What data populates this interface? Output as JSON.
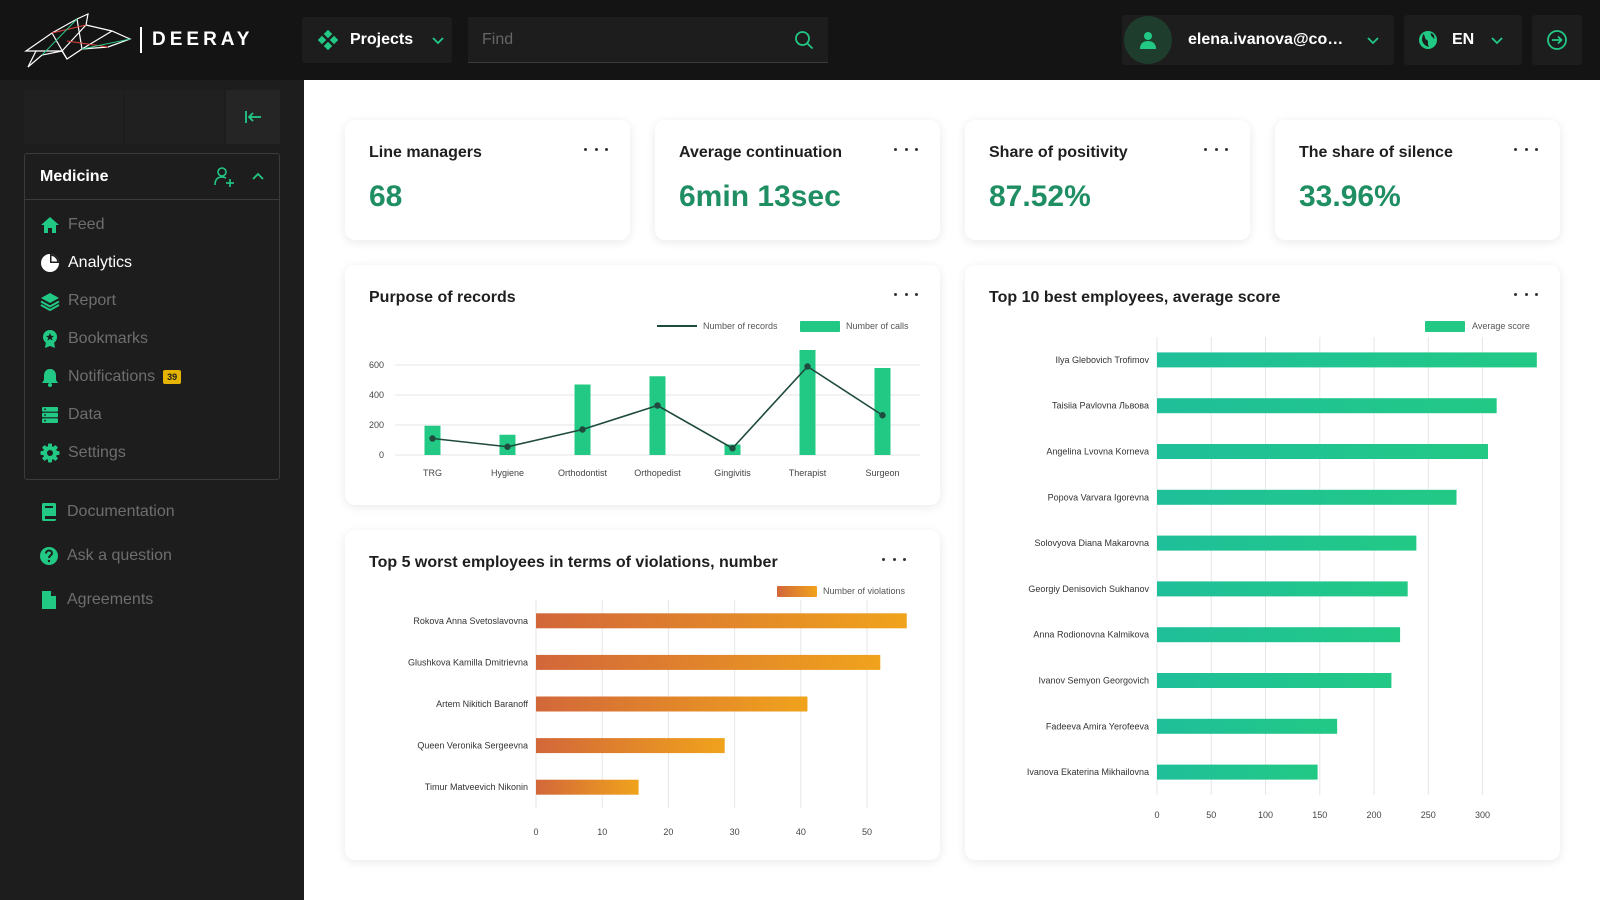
{
  "brand": {
    "name": "DEERAY"
  },
  "header": {
    "projects_label": "Projects",
    "search_placeholder": "Find",
    "user_email": "elena.ivanova@com...",
    "language": "EN"
  },
  "sidebar": {
    "group_title": "Medicine",
    "items": [
      {
        "label": "Feed",
        "icon": "home-icon",
        "active": false
      },
      {
        "label": "Analytics",
        "icon": "pie-chart-icon",
        "active": true
      },
      {
        "label": "Report",
        "icon": "layers-icon",
        "active": false
      },
      {
        "label": "Bookmarks",
        "icon": "badge-icon",
        "active": false
      },
      {
        "label": "Notifications",
        "icon": "bell-icon",
        "active": false,
        "badge": "39"
      },
      {
        "label": "Data",
        "icon": "database-icon",
        "active": false
      },
      {
        "label": "Settings",
        "icon": "gear-icon",
        "active": false
      }
    ],
    "secondary_items": [
      {
        "label": "Documentation",
        "icon": "book-icon"
      },
      {
        "label": "Ask a question",
        "icon": "question-icon"
      },
      {
        "label": "Agreements",
        "icon": "document-icon"
      }
    ]
  },
  "stats": [
    {
      "title": "Line managers",
      "value": "68"
    },
    {
      "title": "Average continuation",
      "value": "6min 13sec"
    },
    {
      "title": "Share of positivity",
      "value": "87.52%"
    },
    {
      "title": "The share of silence",
      "value": "33.96%"
    }
  ],
  "colors": {
    "accent": "#1f8e63",
    "bar_green": "#22c985",
    "line_dark": "#1f4a3e",
    "orange_start": "#d2673a",
    "orange_end": "#f0a31c",
    "sidebar_bg": "#1d1d1d",
    "topbar_bg": "#141414",
    "badge": "#e6b400"
  },
  "chart_data": [
    {
      "id": "purpose",
      "type": "bar",
      "title": "Purpose of records",
      "categories": [
        "TRG",
        "Hygiene",
        "Orthodontist",
        "Orthopedist",
        "Gingivitis",
        "Therapist",
        "Surgeon"
      ],
      "series": [
        {
          "name": "Number of records",
          "kind": "line",
          "values": [
            110,
            55,
            170,
            330,
            45,
            590,
            265
          ]
        },
        {
          "name": "Number of calls",
          "kind": "bar",
          "values": [
            195,
            135,
            470,
            525,
            70,
            700,
            580
          ]
        }
      ],
      "yticks": [
        0,
        200,
        400,
        600
      ],
      "ylim": [
        0,
        720
      ],
      "legend": "top-right",
      "grid": true
    },
    {
      "id": "worst",
      "type": "bar",
      "orientation": "horizontal",
      "title": "Top 5 worst employees in terms of violations, number",
      "categories": [
        "Rokova Anna Svetoslavovna",
        "Glushkova Kamilla Dmitrievna",
        "Artem Nikitich Baranoff",
        "Queen Veronika Sergeevna",
        "Timur Matveevich Nikonin"
      ],
      "series": [
        {
          "name": "Number of violations",
          "values": [
            56,
            52,
            41,
            28.5,
            15.5
          ]
        }
      ],
      "xticks": [
        0,
        10,
        20,
        30,
        40,
        50
      ],
      "xlim": [
        0,
        58
      ],
      "legend": "top-right",
      "grid": true
    },
    {
      "id": "best",
      "type": "bar",
      "orientation": "horizontal",
      "title": "Top 10 best employees, average score",
      "categories": [
        "Ilya Glebovich Trofimov",
        "Taisiia Pavlovna Львова",
        "Angelina Lvovna Korneva",
        "Popova Varvara Igorevna",
        "Solovyova Diana Makarovna",
        "Georgiy Denisovich Sukhanov",
        "Anna Rodionovna Kalmikova",
        "Ivanov Semyon Georgovich",
        "Fadeeva Amira Yerofeeva",
        "Ivanova Ekaterina Mikhailovna"
      ],
      "series": [
        {
          "name": "Average score",
          "values": [
            350,
            313,
            305,
            276,
            239,
            231,
            224,
            216,
            166,
            148
          ]
        }
      ],
      "xticks": [
        0,
        50,
        100,
        150,
        200,
        250,
        300
      ],
      "xlim": [
        0,
        352
      ],
      "legend": "top-right",
      "grid": true
    }
  ]
}
